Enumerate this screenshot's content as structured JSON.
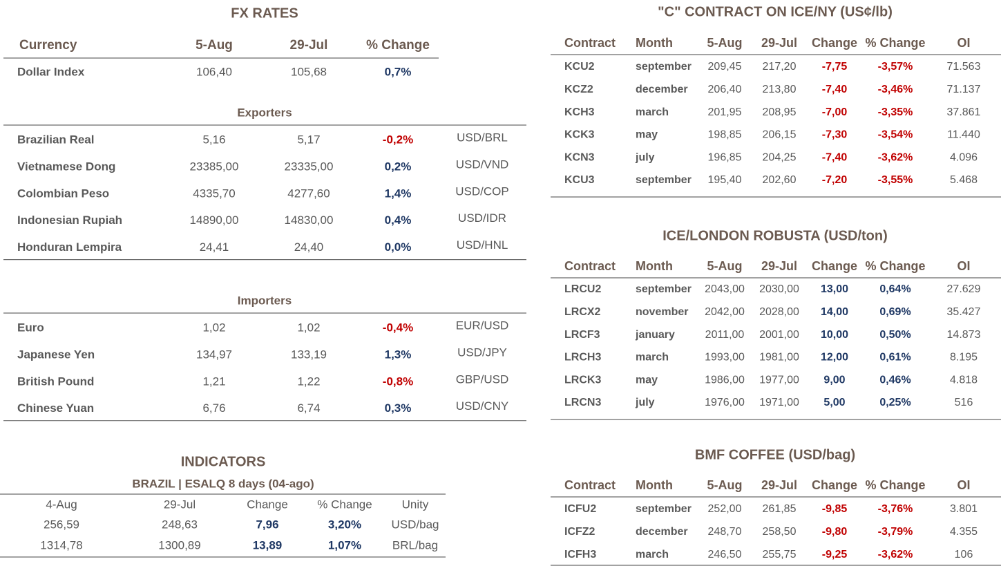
{
  "fx_rates": {
    "title": "FX RATES",
    "headers": [
      "Currency",
      "5-Aug",
      "29-Jul",
      "% Change"
    ],
    "dollar_index": [
      "Dollar Index",
      "106,40",
      "105,68",
      "0,7%"
    ],
    "exporters": {
      "title": "Exporters",
      "rows": [
        [
          "Brazilian Real",
          "5,16",
          "5,17",
          "-0,2%",
          "USD/BRL"
        ],
        [
          "Vietnamese Dong",
          "23385,00",
          "23335,00",
          "0,2%",
          "USD/VND"
        ],
        [
          "Colombian Peso",
          "4335,70",
          "4277,60",
          "1,4%",
          "USD/COP"
        ],
        [
          "Indonesian Rupiah",
          "14890,00",
          "14830,00",
          "0,4%",
          "USD/IDR"
        ],
        [
          "Honduran Lempira",
          "24,41",
          "24,40",
          "0,0%",
          "USD/HNL"
        ]
      ]
    },
    "importers": {
      "title": "Importers",
      "rows": [
        [
          "Euro",
          "1,02",
          "1,02",
          "-0,4%",
          "EUR/USD"
        ],
        [
          "Japanese Yen",
          "134,97",
          "133,19",
          "1,3%",
          "USD/JPY"
        ],
        [
          "British Pound",
          "1,21",
          "1,22",
          "-0,8%",
          "GBP/USD"
        ],
        [
          "Chinese Yuan",
          "6,76",
          "6,74",
          "0,3%",
          "USD/CNY"
        ]
      ]
    }
  },
  "indicators": {
    "title": "INDICATORS",
    "subtitle": "BRAZIL | ESALQ 8 days (04-ago)",
    "headers": [
      "4-Aug",
      "29-Jul",
      "Change",
      "% Change",
      "Unity"
    ],
    "rows": [
      [
        "256,59",
        "248,63",
        "7,96",
        "3,20%",
        "USD/bag"
      ],
      [
        "1314,78",
        "1300,89",
        "13,89",
        "1,07%",
        "BRL/bag"
      ]
    ]
  },
  "contracts": [
    {
      "title": "\"C\" CONTRACT ON ICE/NY (US¢/lb)",
      "headers": [
        "Contract",
        "Month",
        "5-Aug",
        "29-Jul",
        "Change",
        "% Change",
        "OI"
      ],
      "rows": [
        [
          "KCU2",
          "september",
          "209,45",
          "217,20",
          "-7,75",
          "-3,57%",
          "71.563"
        ],
        [
          "KCZ2",
          "december",
          "206,40",
          "213,80",
          "-7,40",
          "-3,46%",
          "71.137"
        ],
        [
          "KCH3",
          "march",
          "201,95",
          "208,95",
          "-7,00",
          "-3,35%",
          "37.861"
        ],
        [
          "KCK3",
          "may",
          "198,85",
          "206,15",
          "-7,30",
          "-3,54%",
          "11.440"
        ],
        [
          "KCN3",
          "july",
          "196,85",
          "204,25",
          "-7,40",
          "-3,62%",
          "4.096"
        ],
        [
          "KCU3",
          "september",
          "195,40",
          "202,60",
          "-7,20",
          "-3,55%",
          "5.468"
        ]
      ]
    },
    {
      "title": "ICE/LONDON ROBUSTA (USD/ton)",
      "headers": [
        "Contract",
        "Month",
        "5-Aug",
        "29-Jul",
        "Change",
        "% Change",
        "OI"
      ],
      "rows": [
        [
          "LRCU2",
          "september",
          "2043,00",
          "2030,00",
          "13,00",
          "0,64%",
          "27.629"
        ],
        [
          "LRCX2",
          "november",
          "2042,00",
          "2028,00",
          "14,00",
          "0,69%",
          "35.427"
        ],
        [
          "LRCF3",
          "january",
          "2011,00",
          "2001,00",
          "10,00",
          "0,50%",
          "14.873"
        ],
        [
          "LRCH3",
          "march",
          "1993,00",
          "1981,00",
          "12,00",
          "0,61%",
          "8.195"
        ],
        [
          "LRCK3",
          "may",
          "1986,00",
          "1977,00",
          "9,00",
          "0,46%",
          "4.818"
        ],
        [
          "LRCN3",
          "july",
          "1976,00",
          "1971,00",
          "5,00",
          "0,25%",
          "516"
        ]
      ]
    },
    {
      "title": "BMF COFFEE (USD/bag)",
      "headers": [
        "Contract",
        "Month",
        "5-Aug",
        "29-Jul",
        "Change",
        "% Change",
        "OI"
      ],
      "rows": [
        [
          "ICFU2",
          "september",
          "252,00",
          "261,85",
          "-9,85",
          "-3,76%",
          "3.801"
        ],
        [
          "ICFZ2",
          "december",
          "248,70",
          "258,50",
          "-9,80",
          "-3,79%",
          "4.355"
        ],
        [
          "ICFH3",
          "march",
          "246,50",
          "255,75",
          "-9,25",
          "-3,62%",
          "106"
        ]
      ]
    }
  ]
}
